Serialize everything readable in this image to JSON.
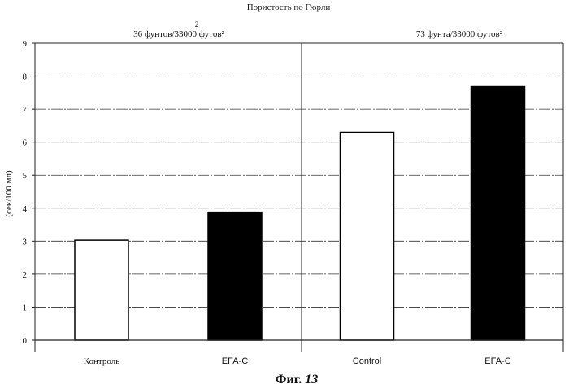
{
  "chart_data": {
    "type": "bar",
    "title": "Пористость по Гюрли",
    "ylabel": "(сек/100 мл)",
    "ylim": [
      0,
      9
    ],
    "yticks": [
      "0",
      "1",
      "2",
      "3",
      "4",
      "5",
      "6",
      "7",
      "8",
      "9"
    ],
    "grid": true,
    "groups": [
      {
        "label": "36 фунтов/33000 футов²",
        "label_extra": "2",
        "categories": [
          "Контроль",
          "EFA-C"
        ],
        "values": [
          3.03,
          3.88
        ]
      },
      {
        "label": "73 фунта/33000 футов²",
        "label_extra": "",
        "categories": [
          "Control",
          "EFA-C"
        ],
        "values": [
          6.3,
          7.68
        ]
      }
    ],
    "bar_colors": [
      "#ffffff",
      "#000000"
    ]
  },
  "caption": {
    "prefix": "Фиг.",
    "number": "13"
  }
}
